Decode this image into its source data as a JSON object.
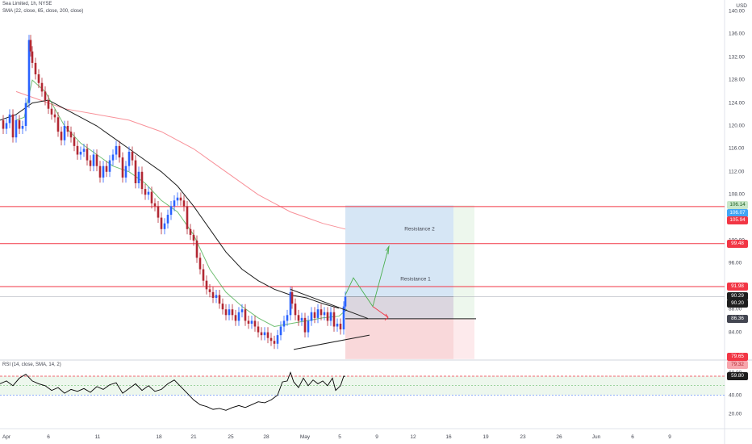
{
  "header": {
    "title": "Sea Limited, 1h, NYSE",
    "sma_legend": "SMA (22, close, 65, close, 200, close)",
    "rsi_legend": "RSI (14, close, SMA, 14, 2)",
    "currency": "USD"
  },
  "colors": {
    "resistance_line": "#f23645",
    "up_candle": "#2962ff",
    "down_candle": "#b22833",
    "sma22": "#4caf50",
    "sma65": "#1e1e1e",
    "sma200": "#f23645",
    "rsi": "#000000",
    "target_zone": "#bbd5ef",
    "stop_zone": "#f7c7cb",
    "up_arrow": "#4caf50",
    "down_arrow": "#f23645"
  },
  "price_axis": {
    "ticks": [
      "140.00",
      "136.00",
      "132.00",
      "128.00",
      "124.00",
      "120.00",
      "116.00",
      "112.00",
      "108.00",
      "104.00",
      "100.00",
      "96.00",
      "92.00",
      "88.00",
      "84.00",
      "80.00"
    ],
    "range": [
      78,
      141
    ]
  },
  "price_tags": [
    {
      "label": "106.14",
      "color": "#c8e6c9",
      "text_color": "#1b5e20",
      "value": 106.14
    },
    {
      "label": "106.07",
      "color": "#42a5f5",
      "text_color": "#ffffff",
      "value": 106.07
    },
    {
      "label": "105.94",
      "color": "#f23645",
      "text_color": "#ffffff",
      "value": 105.94
    },
    {
      "label": "99.48",
      "color": "#f23645",
      "text_color": "#ffffff",
      "value": 99.48
    },
    {
      "label": "91.98",
      "color": "#f23645",
      "text_color": "#ffffff",
      "value": 91.98
    },
    {
      "label": "90.29",
      "color": "#1e1e1e",
      "text_color": "#ffffff",
      "value": 90.29
    },
    {
      "label": "90.20",
      "color": "#1e1e1e",
      "text_color": "#ffffff",
      "value": 90.2
    },
    {
      "label": "86.36",
      "color": "#434651",
      "text_color": "#ffffff",
      "value": 86.36
    },
    {
      "label": "79.65",
      "color": "#f23645",
      "text_color": "#ffffff",
      "value": 79.65
    },
    {
      "label": "79.32",
      "color": "#f7a6ad",
      "text_color": "#b22833",
      "value": 79.32
    }
  ],
  "time_axis": {
    "ticks": [
      "Apr",
      "6",
      "11",
      "18",
      "21",
      "25",
      "28",
      "May",
      "5",
      "9",
      "12",
      "16",
      "19",
      "23",
      "26",
      "Jun",
      "6",
      "9"
    ]
  },
  "rsi_axis": {
    "ticks": [
      "60.00",
      "40.00",
      "20.00"
    ],
    "tag": {
      "label": "59.80",
      "value": 59.8
    }
  },
  "annotations": {
    "resistance_1": "Resistance 1",
    "resistance_2": "Resistance 2"
  },
  "chart_data": {
    "type": "candlestick",
    "title": "Sea Limited, 1h, NYSE",
    "ylim": [
      78,
      141
    ],
    "resistance_levels": [
      105.94,
      99.48,
      91.98
    ],
    "close_line": 90.2,
    "entry": 86.36,
    "target": 106.14,
    "stop": 79.32,
    "close_path": [
      [
        0,
        121
      ],
      [
        4,
        119.5
      ],
      [
        8,
        120.5
      ],
      [
        12,
        122
      ],
      [
        16,
        118
      ],
      [
        20,
        121
      ],
      [
        24,
        119.5
      ],
      [
        28,
        120
      ],
      [
        32,
        124
      ],
      [
        36,
        135
      ],
      [
        38,
        133
      ],
      [
        40,
        131
      ],
      [
        44,
        129
      ],
      [
        48,
        127.5
      ],
      [
        52,
        126
      ],
      [
        56,
        124.5
      ],
      [
        60,
        123
      ],
      [
        64,
        122
      ],
      [
        68,
        121.5
      ],
      [
        72,
        119
      ],
      [
        76,
        117.5
      ],
      [
        80,
        120
      ],
      [
        84,
        119
      ],
      [
        88,
        118
      ],
      [
        92,
        116.5
      ],
      [
        96,
        115
      ],
      [
        100,
        115.5
      ],
      [
        104,
        116
      ],
      [
        108,
        114
      ],
      [
        112,
        113
      ],
      [
        116,
        115
      ],
      [
        120,
        113
      ],
      [
        124,
        111
      ],
      [
        128,
        113
      ],
      [
        132,
        112
      ],
      [
        136,
        114
      ],
      [
        140,
        115
      ],
      [
        144,
        116.5
      ],
      [
        148,
        114.5
      ],
      [
        152,
        111
      ],
      [
        156,
        113
      ],
      [
        160,
        115.5
      ],
      [
        164,
        114
      ],
      [
        168,
        110
      ],
      [
        172,
        112
      ],
      [
        176,
        109
      ],
      [
        180,
        108
      ],
      [
        184,
        108.5
      ],
      [
        188,
        106.5
      ],
      [
        192,
        106
      ],
      [
        196,
        104
      ],
      [
        200,
        102
      ],
      [
        204,
        103
      ],
      [
        208,
        104.5
      ],
      [
        212,
        106
      ],
      [
        216,
        107
      ],
      [
        220,
        107.5
      ],
      [
        224,
        107
      ],
      [
        228,
        106
      ],
      [
        232,
        102
      ],
      [
        236,
        101
      ],
      [
        240,
        100
      ],
      [
        244,
        97
      ],
      [
        248,
        95
      ],
      [
        252,
        93
      ],
      [
        256,
        91.5
      ],
      [
        260,
        91
      ],
      [
        264,
        90
      ],
      [
        268,
        90.5
      ],
      [
        272,
        89
      ],
      [
        276,
        88
      ],
      [
        280,
        87
      ],
      [
        284,
        88
      ],
      [
        288,
        87
      ],
      [
        292,
        86
      ],
      [
        296,
        87.5
      ],
      [
        300,
        88
      ],
      [
        304,
        86
      ],
      [
        308,
        85.5
      ],
      [
        312,
        86
      ],
      [
        316,
        85
      ],
      [
        320,
        84
      ],
      [
        324,
        83.5
      ],
      [
        328,
        84
      ],
      [
        332,
        83
      ],
      [
        336,
        82.5
      ],
      [
        340,
        82
      ],
      [
        344,
        83.5
      ],
      [
        348,
        85
      ],
      [
        352,
        86
      ],
      [
        356,
        87
      ],
      [
        360,
        91
      ],
      [
        362,
        89
      ],
      [
        366,
        87
      ],
      [
        370,
        86
      ],
      [
        374,
        86.5
      ],
      [
        378,
        84
      ],
      [
        382,
        86
      ],
      [
        386,
        87.5
      ],
      [
        390,
        86.5
      ],
      [
        394,
        88
      ],
      [
        398,
        87
      ],
      [
        402,
        87.5
      ],
      [
        406,
        86
      ],
      [
        410,
        87.5
      ],
      [
        414,
        85
      ],
      [
        418,
        85.5
      ],
      [
        422,
        84.5
      ],
      [
        426,
        88.5
      ],
      [
        428,
        90.2
      ]
    ],
    "sma22_path": [
      [
        20,
        121
      ],
      [
        30,
        121.5
      ],
      [
        40,
        128
      ],
      [
        56,
        126
      ],
      [
        80,
        120
      ],
      [
        100,
        117
      ],
      [
        120,
        115
      ],
      [
        140,
        113
      ],
      [
        160,
        112
      ],
      [
        180,
        110
      ],
      [
        200,
        107
      ],
      [
        220,
        105
      ],
      [
        240,
        101
      ],
      [
        260,
        95
      ],
      [
        280,
        91
      ],
      [
        300,
        88.5
      ],
      [
        320,
        86.5
      ],
      [
        340,
        85
      ],
      [
        360,
        85.5
      ],
      [
        380,
        86
      ],
      [
        400,
        86.5
      ],
      [
        420,
        86.8
      ],
      [
        430,
        88
      ]
    ],
    "sma65_path": [
      [
        0,
        121
      ],
      [
        20,
        122
      ],
      [
        40,
        124
      ],
      [
        60,
        124.5
      ],
      [
        80,
        123
      ],
      [
        100,
        121.5
      ],
      [
        120,
        120
      ],
      [
        140,
        118
      ],
      [
        160,
        116
      ],
      [
        180,
        114
      ],
      [
        200,
        112
      ],
      [
        220,
        109.5
      ],
      [
        240,
        106
      ],
      [
        260,
        102
      ],
      [
        280,
        98
      ],
      [
        300,
        95
      ],
      [
        320,
        93
      ],
      [
        340,
        91.5
      ],
      [
        360,
        90.5
      ],
      [
        380,
        90
      ],
      [
        400,
        89
      ],
      [
        420,
        88.2
      ]
    ],
    "sma200_path": [
      [
        20,
        126
      ],
      [
        40,
        125
      ],
      [
        80,
        123
      ],
      [
        120,
        122
      ],
      [
        160,
        121
      ],
      [
        200,
        119
      ],
      [
        240,
        116
      ],
      [
        280,
        112
      ],
      [
        320,
        108
      ],
      [
        360,
        105
      ],
      [
        400,
        103
      ],
      [
        428,
        102
      ]
    ],
    "rsi_path": [
      [
        0,
        52
      ],
      [
        8,
        55
      ],
      [
        16,
        50
      ],
      [
        24,
        58
      ],
      [
        32,
        62
      ],
      [
        40,
        55
      ],
      [
        48,
        52
      ],
      [
        56,
        50
      ],
      [
        64,
        45
      ],
      [
        72,
        48
      ],
      [
        80,
        42
      ],
      [
        88,
        46
      ],
      [
        96,
        44
      ],
      [
        104,
        47
      ],
      [
        112,
        43
      ],
      [
        120,
        49
      ],
      [
        128,
        46
      ],
      [
        136,
        51
      ],
      [
        144,
        53
      ],
      [
        152,
        42
      ],
      [
        160,
        47
      ],
      [
        168,
        52
      ],
      [
        176,
        45
      ],
      [
        184,
        50
      ],
      [
        192,
        44
      ],
      [
        200,
        46
      ],
      [
        208,
        52
      ],
      [
        216,
        56
      ],
      [
        224,
        49
      ],
      [
        232,
        42
      ],
      [
        240,
        35
      ],
      [
        248,
        30
      ],
      [
        256,
        28
      ],
      [
        264,
        25
      ],
      [
        272,
        26
      ],
      [
        280,
        24
      ],
      [
        288,
        27
      ],
      [
        296,
        29
      ],
      [
        304,
        27
      ],
      [
        312,
        30
      ],
      [
        320,
        33
      ],
      [
        328,
        32
      ],
      [
        336,
        35
      ],
      [
        344,
        40
      ],
      [
        350,
        54
      ],
      [
        356,
        55
      ],
      [
        360,
        64
      ],
      [
        364,
        54
      ],
      [
        370,
        48
      ],
      [
        376,
        58
      ],
      [
        382,
        50
      ],
      [
        388,
        56
      ],
      [
        394,
        52
      ],
      [
        400,
        55
      ],
      [
        406,
        50
      ],
      [
        412,
        58
      ],
      [
        416,
        45
      ],
      [
        422,
        50
      ],
      [
        426,
        60
      ],
      [
        428,
        59.8
      ]
    ],
    "trendline_upper": [
      [
        360,
        91.5
      ],
      [
        456,
        86.4
      ]
    ],
    "trendline_lower": [
      [
        364,
        81
      ],
      [
        458,
        83.5
      ]
    ],
    "rsi_levels": {
      "upper": 60,
      "middle": 50,
      "lower": 40
    }
  }
}
